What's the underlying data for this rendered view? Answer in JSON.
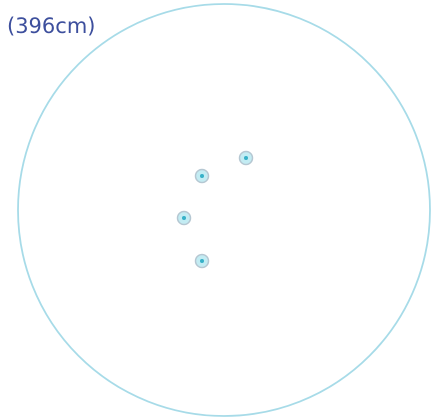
{
  "diagram": {
    "diameter_label": "(396cm)",
    "colors": {
      "outline": "#a7dbe8",
      "marker_ring": "#b5c7d2",
      "marker_fill": "#c3ecf3",
      "marker_dot": "#37b1c8",
      "label": "#3d4f9d"
    },
    "markers": [
      {
        "id": "marker-1"
      },
      {
        "id": "marker-2"
      },
      {
        "id": "marker-3"
      },
      {
        "id": "marker-4"
      }
    ]
  }
}
